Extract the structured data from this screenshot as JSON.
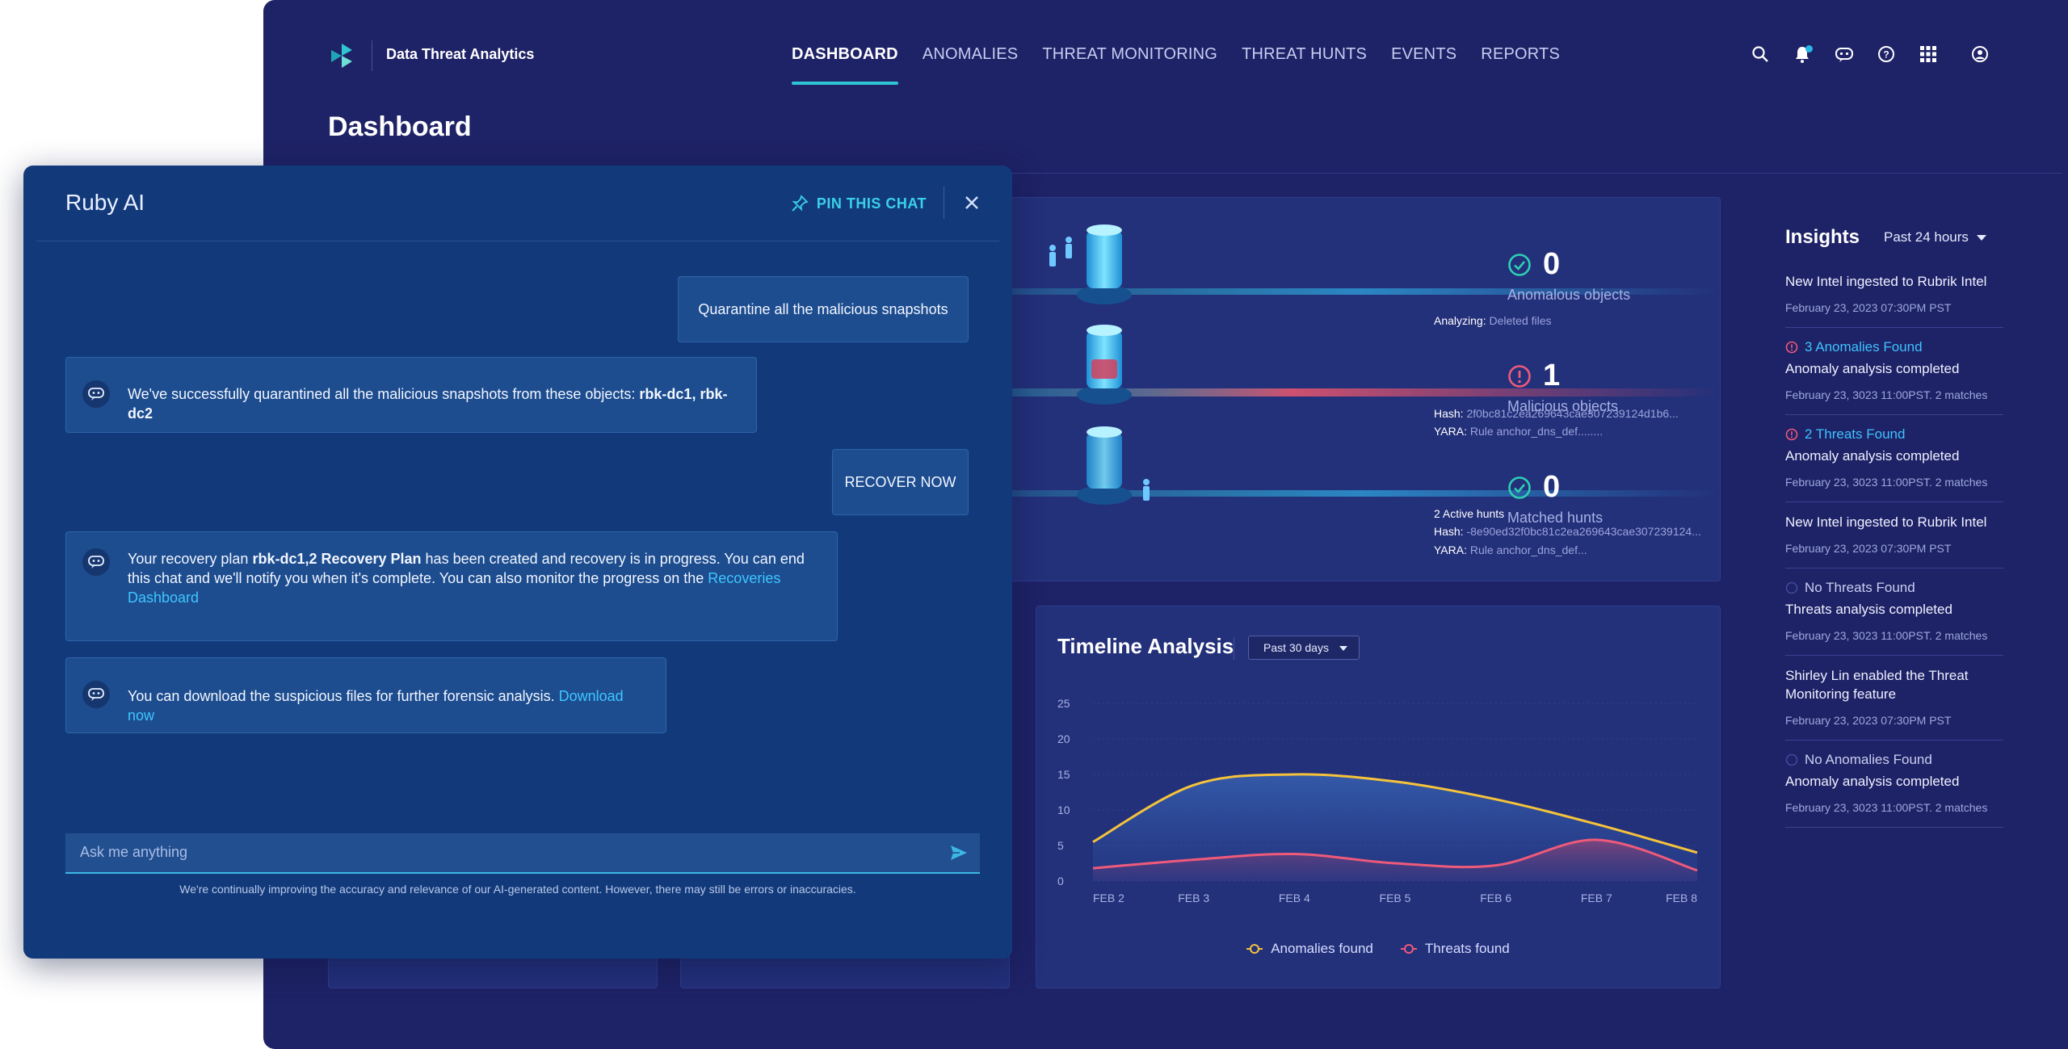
{
  "app": {
    "brand": "Data Threat Analytics",
    "nav": [
      "DASHBOARD",
      "ANOMALIES",
      "THREAT MONITORING",
      "THREAT HUNTS",
      "EVENTS",
      "REPORTS"
    ],
    "active_nav": "DASHBOARD",
    "icons": [
      "search-icon",
      "bell-icon",
      "chat-bot-icon",
      "help-icon",
      "apps-grid-icon",
      "user-icon"
    ],
    "page_title": "Dashboard"
  },
  "summary": {
    "stats": [
      {
        "value": "0",
        "label": "Anomalous objects",
        "status": "ok"
      },
      {
        "value": "1",
        "label": "Malicious objects",
        "status": "alert"
      },
      {
        "value": "0",
        "label": "Matched hunts",
        "status": "ok"
      }
    ],
    "analyzing_label": "Analyzing:",
    "analyzing_value": "Deleted files",
    "malicious_hash_label": "Hash:",
    "malicious_hash": "2f0bc81c2ea269643cae307239124d1b6...",
    "malicious_yara_label": "YARA:",
    "malicious_yara": "Rule anchor_dns_def........",
    "hunts_count": "2 Active hunts",
    "hunts_hash_label": "Hash:",
    "hunts_hash": "-8e90ed32f0bc81c2ea269643cae307239124...",
    "hunts_yara_label": "YARA:",
    "hunts_yara": "Rule anchor_dns_def..."
  },
  "timeline": {
    "title": "Timeline Analysis",
    "range": "Past 30 days"
  },
  "chart_data": {
    "type": "area",
    "x": [
      "FEB 2",
      "FEB 3",
      "FEB 4",
      "FEB 5",
      "FEB 6",
      "FEB 7",
      "FEB 8"
    ],
    "yticks": [
      0,
      5,
      10,
      15,
      20,
      25
    ],
    "ylim": [
      0,
      25
    ],
    "grid": true,
    "legend_position": "bottom",
    "series": [
      {
        "name": "Anomalies found",
        "color": "#f5c33b",
        "values": [
          5.5,
          13.5,
          15,
          14,
          11.5,
          8,
          4
        ]
      },
      {
        "name": "Threats found",
        "color": "#ef5a7a",
        "values": [
          1.8,
          3,
          3.8,
          2.5,
          2.2,
          5.8,
          1.5
        ]
      }
    ]
  },
  "insights": {
    "title": "Insights",
    "range": "Past 24 hours",
    "items": [
      {
        "tag": "",
        "tag_type": "",
        "text": "New Intel ingested to Rubrik Intel",
        "date": "February 23, 2023 07:30PM PST"
      },
      {
        "tag": "3 Anomalies Found",
        "tag_type": "red",
        "text": "Anomaly analysis completed",
        "date": "February 23, 3023 11:00PST. 2 matches"
      },
      {
        "tag": "2 Threats Found",
        "tag_type": "red",
        "text": "Anomaly analysis completed",
        "date": "February 23, 3023 11:00PST. 2 matches"
      },
      {
        "tag": "",
        "tag_type": "",
        "text": "New Intel ingested to Rubrik Intel",
        "date": "February 23, 2023 07:30PM PST"
      },
      {
        "tag": "No Threats Found",
        "tag_type": "gray",
        "text": "Threats analysis completed",
        "date": "February 23, 3023 11:00PST. 2 matches"
      },
      {
        "tag": "",
        "tag_type": "",
        "text": "Shirley Lin enabled the Threat Monitoring feature",
        "date": "February 23, 2023 07:30PM PST"
      },
      {
        "tag": "No Anomalies Found",
        "tag_type": "gray",
        "text": "Anomaly analysis completed",
        "date": "February 23, 3023 11:00PST. 2 matches"
      }
    ]
  },
  "chat": {
    "title": "Ruby AI",
    "pin_label": "PIN THIS CHAT",
    "msg1_user": "Quarantine all the malicious snapshots",
    "msg2_text": "We've successfully quarantined all the malicious snapshots from these objects: ",
    "msg2_bold": "rbk-dc1, rbk-dc2",
    "msg3_user": "RECOVER NOW",
    "msg4_pre": "Your recovery plan ",
    "msg4_bold": "rbk-dc1,2 Recovery Plan",
    "msg4_post": " has been created and recovery is in progress. You can end this chat and we'll notify you when it's complete.  You can also monitor the progress on the ",
    "msg4_link": "Recoveries Dashboard",
    "msg5_text": "You can download the suspicious files for further forensic analysis. ",
    "msg5_link": "Download now",
    "input_placeholder": "Ask me anything",
    "disclaimer": "We're continually improving the accuracy and relevance of our AI-generated content. However, there may still be errors or inaccuracies."
  }
}
